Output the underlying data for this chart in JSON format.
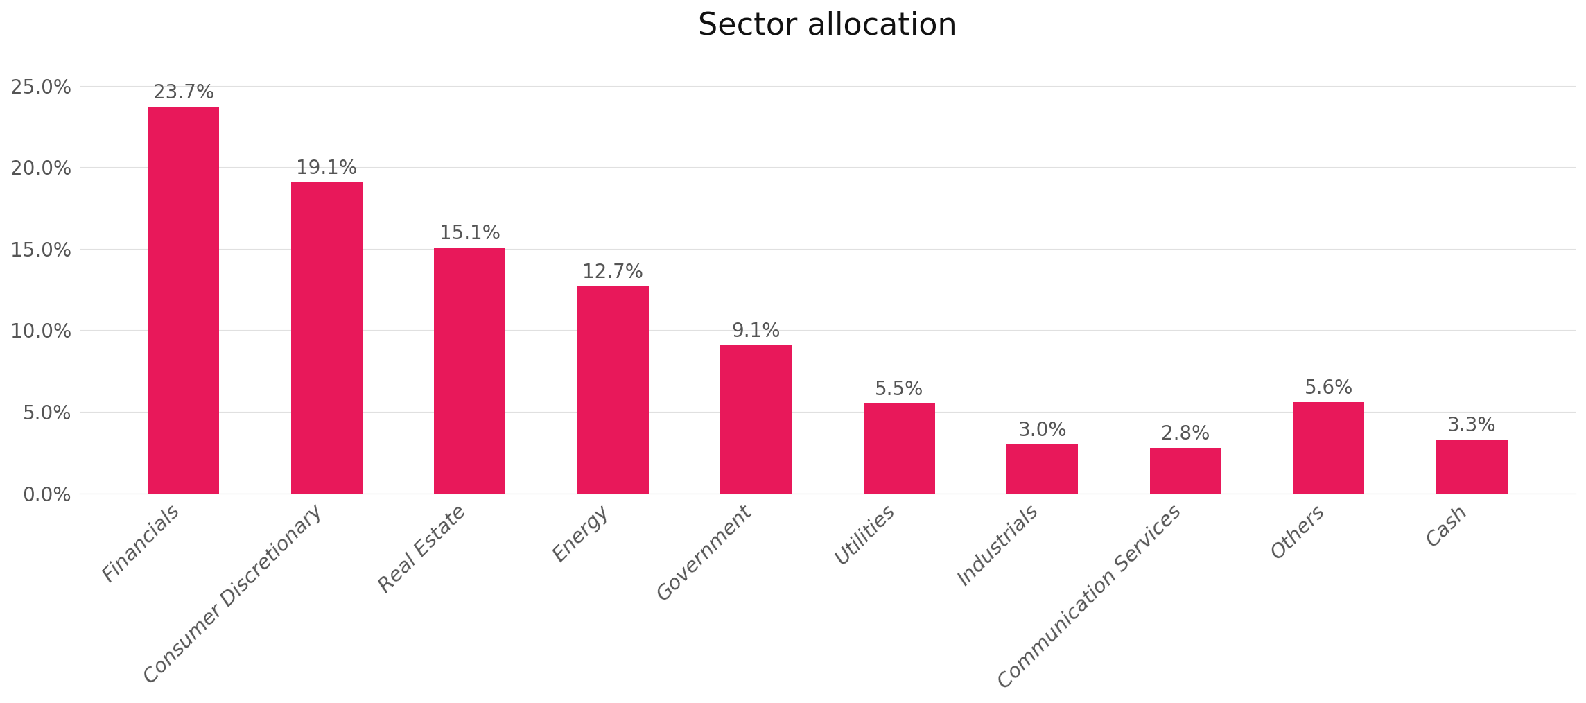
{
  "title": "Sector allocation",
  "categories": [
    "Financials",
    "Consumer Discretionary",
    "Real Estate",
    "Energy",
    "Government",
    "Utilities",
    "Industrials",
    "Communication Services",
    "Others",
    "Cash"
  ],
  "values": [
    23.7,
    19.1,
    15.1,
    12.7,
    9.1,
    5.5,
    3.0,
    2.8,
    5.6,
    3.3
  ],
  "bar_color": "#e8185a",
  "label_color": "#555555",
  "title_color": "#111111",
  "title_fontsize": 32,
  "value_label_fontsize": 20,
  "ytick_fontsize": 20,
  "xtick_fontsize": 21,
  "background_color": "#ffffff",
  "ylim": [
    0,
    27
  ],
  "yticks": [
    0,
    5.0,
    10.0,
    15.0,
    20.0,
    25.0
  ],
  "ytick_labels": [
    "0.0%",
    "5.0%",
    "10.0%",
    "15.0%",
    "20.0%",
    "25.0%"
  ],
  "bar_width": 0.5,
  "grid_color": "#e0e0e0",
  "bottom_line_color": "#cccccc"
}
